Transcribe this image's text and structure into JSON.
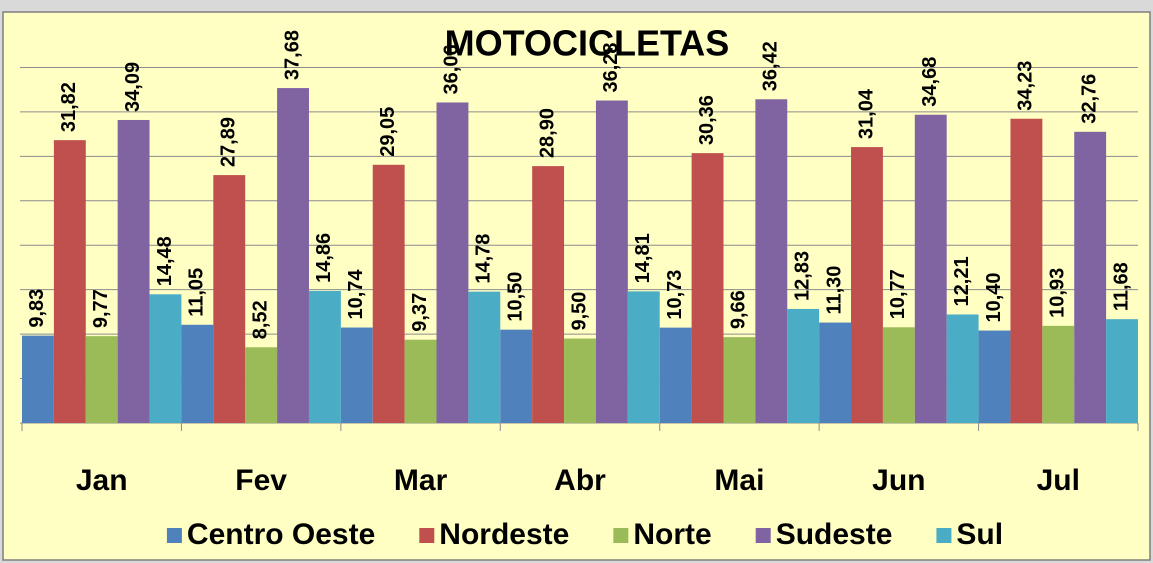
{
  "chart_data": {
    "type": "bar",
    "title": "MOTOCICLETAS",
    "categories": [
      "Jan",
      "Fev",
      "Mar",
      "Abr",
      "Mai",
      "Jun",
      "Jul"
    ],
    "series": [
      {
        "name": "Centro Oeste",
        "color": "#4f81bd",
        "values": [
          9.83,
          11.05,
          10.74,
          10.5,
          10.73,
          11.3,
          10.4
        ],
        "value_labels": [
          "9,83",
          "11,05",
          "10,74",
          "10,50",
          "10,73",
          "11,30",
          "10,40"
        ]
      },
      {
        "name": "Nordeste",
        "color": "#c0504d",
        "values": [
          31.82,
          27.89,
          29.05,
          28.9,
          30.36,
          31.04,
          34.23
        ],
        "value_labels": [
          "31,82",
          "27,89",
          "29,05",
          "28,90",
          "30,36",
          "31,04",
          "34,23"
        ]
      },
      {
        "name": "Norte",
        "color": "#9bbb59",
        "values": [
          9.77,
          8.52,
          9.37,
          9.5,
          9.66,
          10.77,
          10.93
        ],
        "value_labels": [
          "9,77",
          "8,52",
          "9,37",
          "9,50",
          "9,66",
          "10,77",
          "10,93"
        ]
      },
      {
        "name": "Sudeste",
        "color": "#8064a2",
        "values": [
          34.09,
          37.68,
          36.06,
          36.28,
          36.42,
          34.68,
          32.76
        ],
        "value_labels": [
          "34,09",
          "37,68",
          "36,06",
          "36,28",
          "36,42",
          "34,68",
          "32,76"
        ]
      },
      {
        "name": "Sul",
        "color": "#4bacc6",
        "values": [
          14.48,
          14.86,
          14.78,
          14.81,
          12.83,
          12.21,
          11.68
        ],
        "value_labels": [
          "14,48",
          "14,86",
          "14,78",
          "14,81",
          "12,83",
          "12,21",
          "11,68"
        ]
      }
    ],
    "ylim": [
      0,
      45
    ],
    "yticks": [
      0,
      5,
      10,
      15,
      20,
      25,
      30,
      35,
      40
    ],
    "grid": true,
    "legend": "bottom"
  }
}
